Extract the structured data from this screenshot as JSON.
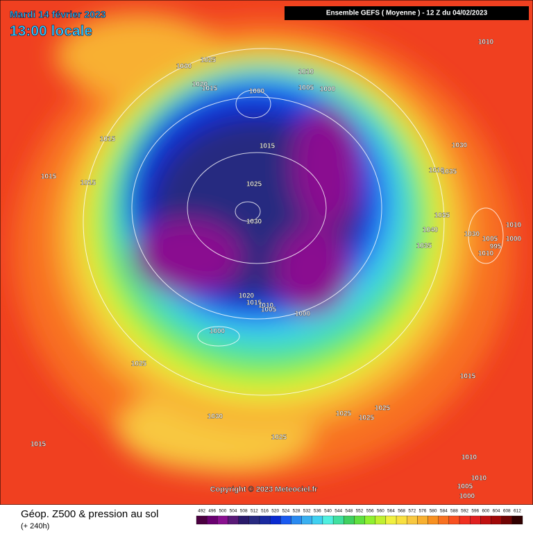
{
  "header": {
    "date": "Mardi 14 février 2023",
    "time": "13:00 locale",
    "model": "Ensemble GEFS  ( Moyenne )  -  12 Z du 04/02/2023"
  },
  "isobar_labels": [
    "1030",
    "1025",
    "1020",
    "1015",
    "1010",
    "1005",
    "1000",
    "1000",
    "1010",
    "1015",
    "1015",
    "1030",
    "1015",
    "1015",
    "1025",
    "1035",
    "1010",
    "1030",
    "1035",
    "1040",
    "1030",
    "1005",
    "995",
    "1010",
    "1000",
    "1035",
    "1010",
    "1020",
    "1015",
    "1010",
    "1005",
    "1000",
    "1000",
    "1025",
    "1015",
    "1030",
    "1025",
    "1025",
    "1025",
    "1025",
    "1015",
    "1010",
    "1010",
    "1005",
    "1000"
  ],
  "copyright": "Copyright © 2023 Meteociel.fr",
  "footer": {
    "title": "Géop. Z500 & pression au sol",
    "lead": "(+ 240h)"
  },
  "legend": {
    "values": [
      492,
      496,
      500,
      504,
      508,
      512,
      516,
      520,
      524,
      528,
      532,
      536,
      540,
      544,
      548,
      552,
      556,
      560,
      564,
      568,
      572,
      576,
      580,
      584,
      588,
      592,
      596,
      600,
      604,
      608,
      612
    ],
    "colors": [
      "#4b0040",
      "#6a0070",
      "#8a1090",
      "#5a1a78",
      "#2a1a6a",
      "#282a80",
      "#1a2aa0",
      "#0a2ad0",
      "#1a5af0",
      "#2a8af0",
      "#3ab0f0",
      "#40d0f0",
      "#50f0e0",
      "#40e0a0",
      "#40d060",
      "#60e040",
      "#90f030",
      "#c0f030",
      "#f0f040",
      "#f8e040",
      "#f8c840",
      "#f8b030",
      "#f89020",
      "#f87020",
      "#f85020",
      "#f03020",
      "#e02020",
      "#c01010",
      "#a00808",
      "#700404",
      "#300000"
    ]
  }
}
